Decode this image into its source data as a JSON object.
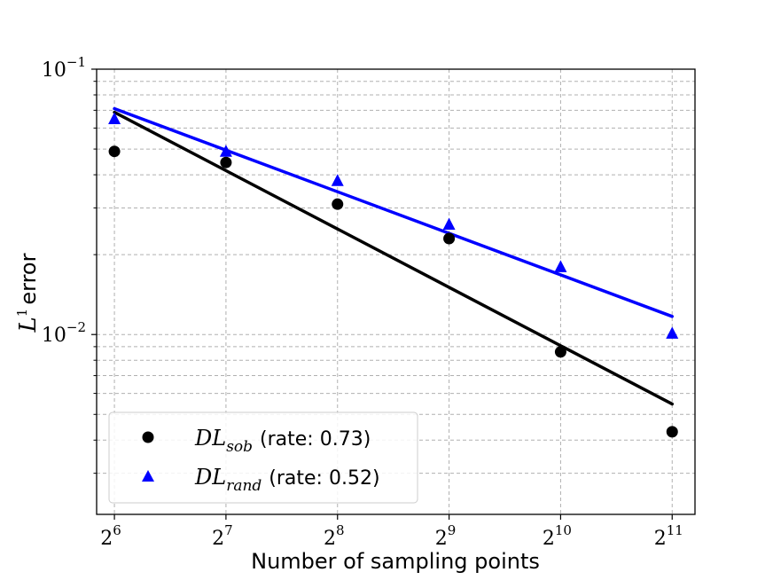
{
  "chart_data": {
    "type": "scatter",
    "title": "",
    "xlabel": "Number of sampling points",
    "ylabel_symbol": "L",
    "ylabel_sup": "1",
    "ylabel_text": "error",
    "xscale": "log2",
    "yscale": "log10",
    "xlim": [
      57.3,
      2360
    ],
    "ylim": [
      0.0021,
      0.1
    ],
    "grid": true,
    "legend_position": "lower-left",
    "x_ticks": [
      {
        "base": "2",
        "exp": "6"
      },
      {
        "base": "2",
        "exp": "7"
      },
      {
        "base": "2",
        "exp": "8"
      },
      {
        "base": "2",
        "exp": "9"
      },
      {
        "base": "2",
        "exp": "10"
      },
      {
        "base": "2",
        "exp": "11"
      }
    ],
    "y_ticks": [
      {
        "base": "10",
        "exp": "−1",
        "value": 0.1
      },
      {
        "base": "10",
        "exp": "−2",
        "value": 0.01
      }
    ],
    "x": [
      64,
      128,
      256,
      512,
      1024,
      2048
    ],
    "series": [
      {
        "name_main": "DL",
        "name_sub": "sob",
        "name_rate": "(rate:  0.73)",
        "marker": "circle",
        "color": "#000000",
        "values": [
          0.049,
          0.0445,
          0.031,
          0.023,
          0.0086,
          0.0043
        ],
        "fit": [
          0.0688,
          0.00547
        ]
      },
      {
        "name_main": "DL",
        "name_sub": "rand",
        "name_rate": "(rate:  0.52)",
        "marker": "triangle",
        "color": "#0000ff",
        "values": [
          0.065,
          0.049,
          0.038,
          0.026,
          0.018,
          0.0101
        ],
        "fit": [
          0.071,
          0.0117
        ]
      }
    ]
  }
}
